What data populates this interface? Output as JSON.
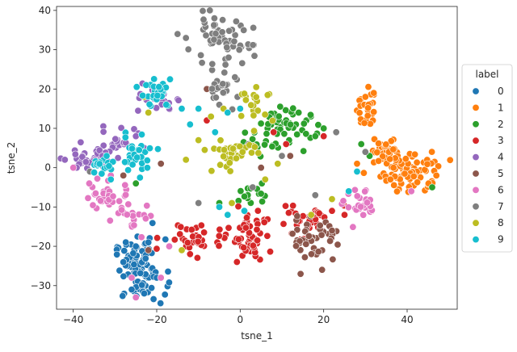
{
  "chart_data": {
    "type": "scatter",
    "title": "",
    "xlabel": "tsne_1",
    "ylabel": "tsne_2",
    "xlim": [
      -44,
      52
    ],
    "ylim": [
      -36,
      41
    ],
    "xticks": [
      -40,
      -20,
      0,
      20,
      40
    ],
    "yticks": [
      -30,
      -20,
      -10,
      0,
      10,
      20,
      30,
      40
    ],
    "grid": false,
    "legend": {
      "title": "label",
      "placement": "right"
    },
    "series": [
      {
        "name": "0",
        "color": "#1f77b4",
        "clusters": [
          {
            "center": [
              -24,
              -26
            ],
            "spread": [
              3,
              4
            ],
            "n": 90
          }
        ],
        "points": [
          [
            -25,
            -20
          ],
          [
            -22,
            -19
          ],
          [
            -26,
            -31
          ],
          [
            -23,
            -32
          ],
          [
            -20,
            -28
          ],
          [
            -28,
            -24
          ],
          [
            -14,
            -21
          ]
        ]
      },
      {
        "name": "1",
        "color": "#ff7f0e",
        "clusters": [
          {
            "center": [
              41,
              -1
            ],
            "spread": [
              3.5,
              2.5
            ],
            "n": 85
          },
          {
            "center": [
              35,
              5
            ],
            "spread": [
              2,
              2
            ],
            "n": 30
          },
          {
            "center": [
              30,
              15
            ],
            "spread": [
              1,
              3
            ],
            "n": 25
          }
        ],
        "points": [
          [
            32,
            19
          ],
          [
            30,
            18
          ],
          [
            47,
            -2
          ],
          [
            41,
            -6
          ],
          [
            28,
            1
          ],
          [
            36,
            -3
          ]
        ]
      },
      {
        "name": "2",
        "color": "#2ca02c",
        "clusters": [
          {
            "center": [
              9,
              10
            ],
            "spread": [
              4,
              3
            ],
            "n": 60
          },
          {
            "center": [
              3,
              -7
            ],
            "spread": [
              2,
              1.5
            ],
            "n": 15
          }
        ],
        "points": [
          [
            18,
            8
          ],
          [
            20,
            10
          ],
          [
            14,
            14
          ],
          [
            29,
            6
          ],
          [
            31,
            3
          ],
          [
            46,
            -5
          ],
          [
            -25,
            -4
          ],
          [
            -5,
            -9
          ]
        ]
      },
      {
        "name": "3",
        "color": "#d62728",
        "clusters": [
          {
            "center": [
              2,
              -18
            ],
            "spread": [
              2,
              3
            ],
            "n": 55
          },
          {
            "center": [
              -10,
              -18
            ],
            "spread": [
              4,
              2
            ],
            "n": 35
          },
          {
            "center": [
              14,
              -13
            ],
            "spread": [
              6,
              2
            ],
            "n": 35
          }
        ],
        "points": [
          [
            22,
            -11
          ],
          [
            25,
            -12
          ],
          [
            -12,
            -22
          ],
          [
            8,
            9
          ],
          [
            11,
            6
          ],
          [
            20,
            8
          ],
          [
            -8,
            12
          ]
        ]
      },
      {
        "name": "4",
        "color": "#9467bd",
        "clusters": [
          {
            "center": [
              -37,
              2
            ],
            "spread": [
              3,
              1.5
            ],
            "n": 35
          },
          {
            "center": [
              -30,
              6
            ],
            "spread": [
              3,
              2
            ],
            "n": 30
          },
          {
            "center": [
              -20,
              17
            ],
            "spread": [
              2,
              2
            ],
            "n": 20
          }
        ],
        "points": [
          [
            -42,
            2
          ],
          [
            -17,
            15
          ],
          [
            -25,
            8
          ],
          [
            -23,
            5
          ],
          [
            -33,
            3
          ]
        ]
      },
      {
        "name": "5",
        "color": "#8c564b",
        "clusters": [
          {
            "center": [
              18,
              -18
            ],
            "spread": [
              3,
              3
            ],
            "n": 45
          }
        ],
        "points": [
          [
            22,
            -16
          ],
          [
            12,
            3
          ],
          [
            5,
            0
          ],
          [
            -8,
            20
          ],
          [
            -22,
            -21
          ],
          [
            -19,
            1
          ],
          [
            -28,
            -2
          ]
        ]
      },
      {
        "name": "6",
        "color": "#e377c2",
        "clusters": [
          {
            "center": [
              -32,
              -7
            ],
            "spread": [
              3,
              2
            ],
            "n": 30
          },
          {
            "center": [
              29,
              -10
            ],
            "spread": [
              2,
              2
            ],
            "n": 25
          },
          {
            "center": [
              -26,
              -13
            ],
            "spread": [
              3,
              2
            ],
            "n": 20
          }
        ],
        "points": [
          [
            -40,
            0
          ],
          [
            -31,
            -2
          ],
          [
            -19,
            -28
          ],
          [
            -25,
            -33
          ],
          [
            -17,
            -20
          ],
          [
            41,
            -6
          ],
          [
            -26,
            -28
          ]
        ]
      },
      {
        "name": "7",
        "color": "#7f7f7f",
        "clusters": [
          {
            "center": [
              -5,
              32
            ],
            "spread": [
              4,
              3
            ],
            "n": 55
          },
          {
            "center": [
              -4,
              20
            ],
            "spread": [
              2,
              2
            ],
            "n": 20
          }
        ],
        "points": [
          [
            -13,
            33
          ],
          [
            -15,
            34
          ],
          [
            -5,
            16
          ],
          [
            2,
            6
          ],
          [
            10,
            3
          ],
          [
            18,
            -7
          ],
          [
            23,
            9
          ],
          [
            30,
            4
          ],
          [
            -36,
            -1
          ],
          [
            -10,
            -9
          ],
          [
            3,
            -5
          ]
        ]
      },
      {
        "name": "8",
        "color": "#bcbd22",
        "clusters": [
          {
            "center": [
              -2,
              4
            ],
            "spread": [
              3,
              2
            ],
            "n": 35
          },
          {
            "center": [
              4,
              16
            ],
            "spread": [
              2,
              2
            ],
            "n": 20
          }
        ],
        "points": [
          [
            -23,
            18
          ],
          [
            -22,
            14
          ],
          [
            -4,
            15
          ],
          [
            -7,
            13
          ],
          [
            -10,
            7
          ],
          [
            -14,
            -21
          ],
          [
            6,
            -3
          ],
          [
            17,
            -12
          ],
          [
            22,
            -8
          ],
          [
            9,
            1
          ],
          [
            -13,
            2
          ],
          [
            -2,
            -9
          ]
        ]
      },
      {
        "name": "9",
        "color": "#17becf",
        "clusters": [
          {
            "center": [
              -20,
              19
            ],
            "spread": [
              2,
              2
            ],
            "n": 25
          },
          {
            "center": [
              -25,
              4
            ],
            "spread": [
              2.5,
              2.5
            ],
            "n": 30
          },
          {
            "center": [
              -33,
              0
            ],
            "spread": [
              2,
              1.5
            ],
            "n": 15
          }
        ],
        "points": [
          [
            -12,
            11
          ],
          [
            -10,
            15
          ],
          [
            -6,
            9
          ],
          [
            -3,
            14
          ],
          [
            0,
            15
          ],
          [
            -31,
            -3
          ],
          [
            28,
            -1
          ],
          [
            26,
            -6
          ],
          [
            -5,
            -10
          ],
          [
            1,
            -11
          ],
          [
            -3,
            -12
          ],
          [
            -14,
            15
          ],
          [
            -32,
            3
          ]
        ]
      }
    ]
  }
}
